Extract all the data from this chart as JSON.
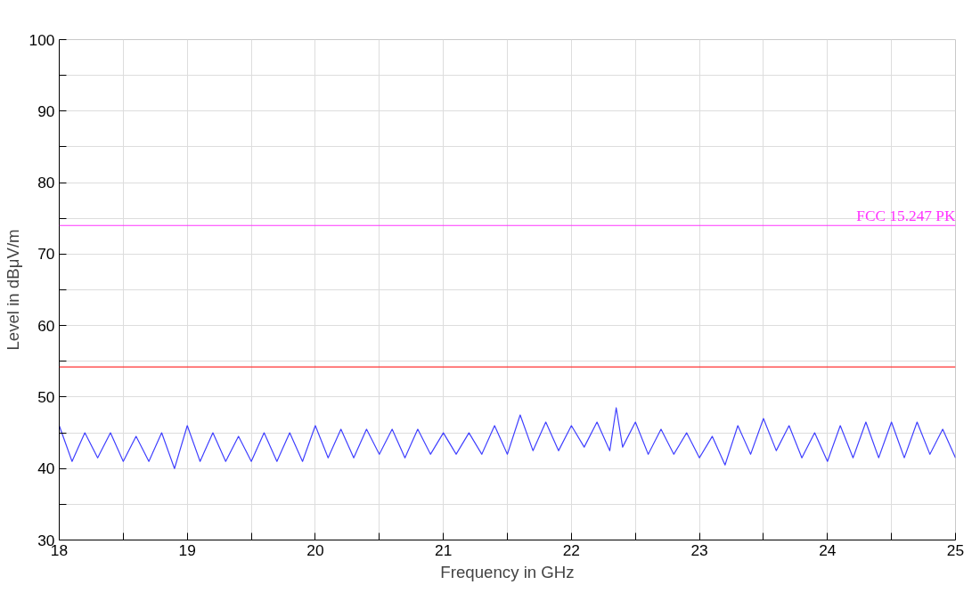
{
  "chart_data": {
    "type": "line",
    "xlabel": "Frequency in GHz",
    "ylabel": "Level in dBμV/m",
    "xlim": [
      18,
      25
    ],
    "ylim": [
      30,
      100
    ],
    "xticks": [
      18,
      {
        "value": 18.5,
        "label": null
      },
      19,
      {
        "value": 19.5,
        "label": null
      },
      20,
      {
        "value": 20.5,
        "label": null
      },
      21,
      {
        "value": 21.5,
        "label": null
      },
      22,
      {
        "value": 22.5,
        "label": null
      },
      23,
      {
        "value": 23.5,
        "label": null
      },
      24,
      {
        "value": 24.5,
        "label": null
      },
      25
    ],
    "yticks": [
      30,
      {
        "value": 35,
        "label": null
      },
      40,
      {
        "value": 45,
        "label": null
      },
      50,
      {
        "value": 55,
        "label": null
      },
      60,
      {
        "value": 65,
        "label": null
      },
      70,
      {
        "value": 75,
        "label": null
      },
      80,
      {
        "value": 85,
        "label": null
      },
      90,
      {
        "value": 95,
        "label": null
      },
      100
    ],
    "grid": true,
    "marker": "none",
    "line_style": "solid",
    "x": [
      18.0,
      18.1,
      18.2,
      18.3,
      18.4,
      18.5,
      18.6,
      18.7,
      18.8,
      18.9,
      19.0,
      19.1,
      19.2,
      19.3,
      19.4,
      19.5,
      19.6,
      19.7,
      19.8,
      19.9,
      20.0,
      20.1,
      20.2,
      20.3,
      20.4,
      20.5,
      20.6,
      20.7,
      20.8,
      20.9,
      21.0,
      21.1,
      21.2,
      21.3,
      21.4,
      21.5,
      21.6,
      21.7,
      21.8,
      21.9,
      22.0,
      22.1,
      22.2,
      22.3,
      22.35,
      22.4,
      22.5,
      22.6,
      22.7,
      22.8,
      22.9,
      23.0,
      23.1,
      23.2,
      23.3,
      23.4,
      23.5,
      23.6,
      23.7,
      23.8,
      23.9,
      24.0,
      24.1,
      24.2,
      24.3,
      24.4,
      24.5,
      24.6,
      24.7,
      24.8,
      24.9,
      25.0
    ],
    "series": [
      {
        "color": "#4040ff",
        "values": [
          46,
          41,
          45,
          41.5,
          45,
          41,
          44.5,
          41,
          45,
          40,
          46,
          41,
          45,
          41,
          44.5,
          41,
          45,
          41,
          45,
          41,
          46,
          41.5,
          45.5,
          41.5,
          45.5,
          42,
          45.5,
          41.5,
          45.5,
          42,
          45,
          42,
          45,
          42,
          46,
          42,
          47.5,
          42.5,
          46.5,
          42.5,
          46,
          43,
          46.5,
          42.5,
          48.5,
          43,
          46.5,
          42,
          45.5,
          42,
          45,
          41.5,
          44.5,
          40.5,
          46,
          42,
          47,
          42.5,
          46,
          41.5,
          45,
          41,
          46,
          41.5,
          46.5,
          41.5,
          46.5,
          41.5,
          46.5,
          42,
          45.5,
          41.5
        ]
      }
    ],
    "ref_lines": [
      {
        "axis": "y",
        "value": 74,
        "label": "FCC 15.247 PK",
        "color": "#ff33ff"
      },
      {
        "axis": "y",
        "value": 54.2,
        "color": "#ff3333"
      }
    ]
  }
}
